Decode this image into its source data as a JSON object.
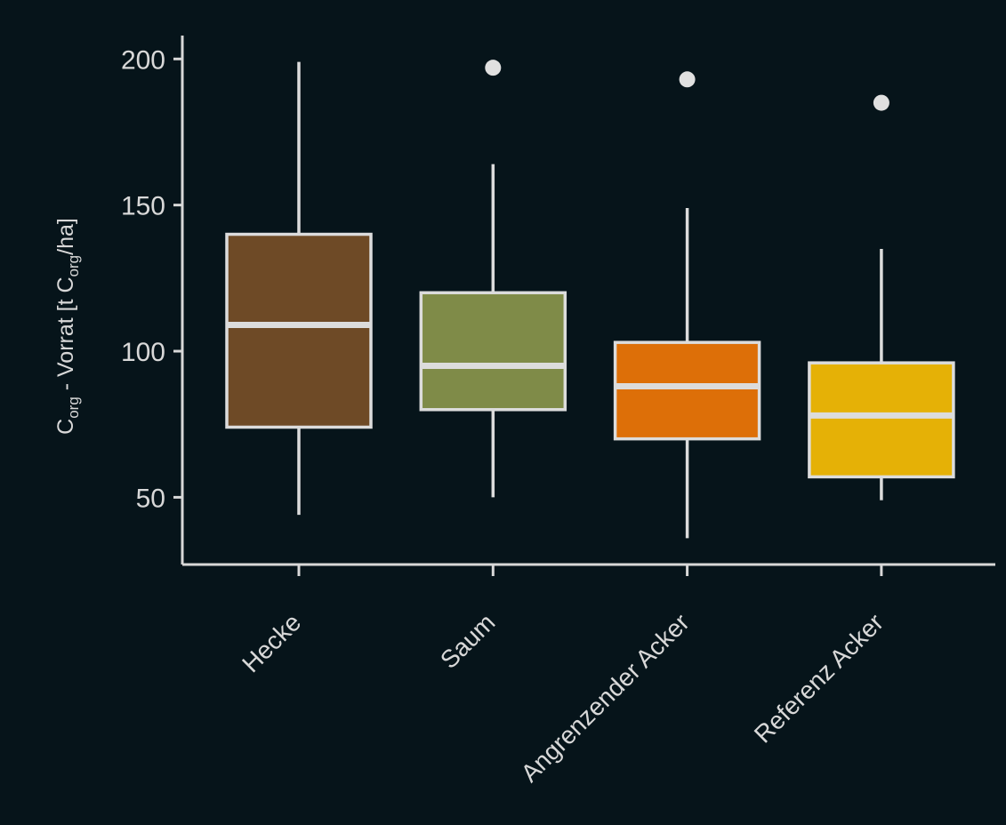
{
  "colors": {
    "background": "#06141a",
    "axis": "#d8d8d8",
    "text": "#d8d8d8",
    "outline": "#dcdcdc",
    "outlier": "#e0e0e0"
  },
  "chart_data": {
    "type": "boxplot",
    "ylim": [
      27,
      208
    ],
    "yticks": [
      50,
      100,
      150,
      200
    ],
    "ytick_labels": [
      "50",
      "100",
      "150",
      "200"
    ],
    "ylabel": {
      "p1": "C",
      "s1": "org",
      "p2": " - Vorrat [t C",
      "s2": "org",
      "p3": "/ha]"
    },
    "xlabel": "",
    "title": "",
    "grid": false,
    "legend": "none",
    "categories": [
      "Hecke",
      "Saum",
      "Angrenzender Acker",
      "Referenz Acker"
    ],
    "boxes": [
      {
        "category": "Hecke",
        "whisker_low": 44,
        "q1": 74,
        "median": 109,
        "q3": 140,
        "whisker_high": 199,
        "outliers": [],
        "color": "#6e4a26"
      },
      {
        "category": "Saum",
        "whisker_low": 50,
        "q1": 80,
        "median": 95,
        "q3": 120,
        "whisker_high": 164,
        "outliers": [
          197
        ],
        "color": "#7f8b48"
      },
      {
        "category": "Angrenzender Acker",
        "whisker_low": 36,
        "q1": 70,
        "median": 88,
        "q3": 103,
        "whisker_high": 149,
        "outliers": [
          193
        ],
        "color": "#dd6f08"
      },
      {
        "category": "Referenz Acker",
        "whisker_low": 49,
        "q1": 57,
        "median": 78,
        "q3": 96,
        "whisker_high": 135,
        "outliers": [
          185
        ],
        "color": "#e5b106"
      }
    ]
  }
}
